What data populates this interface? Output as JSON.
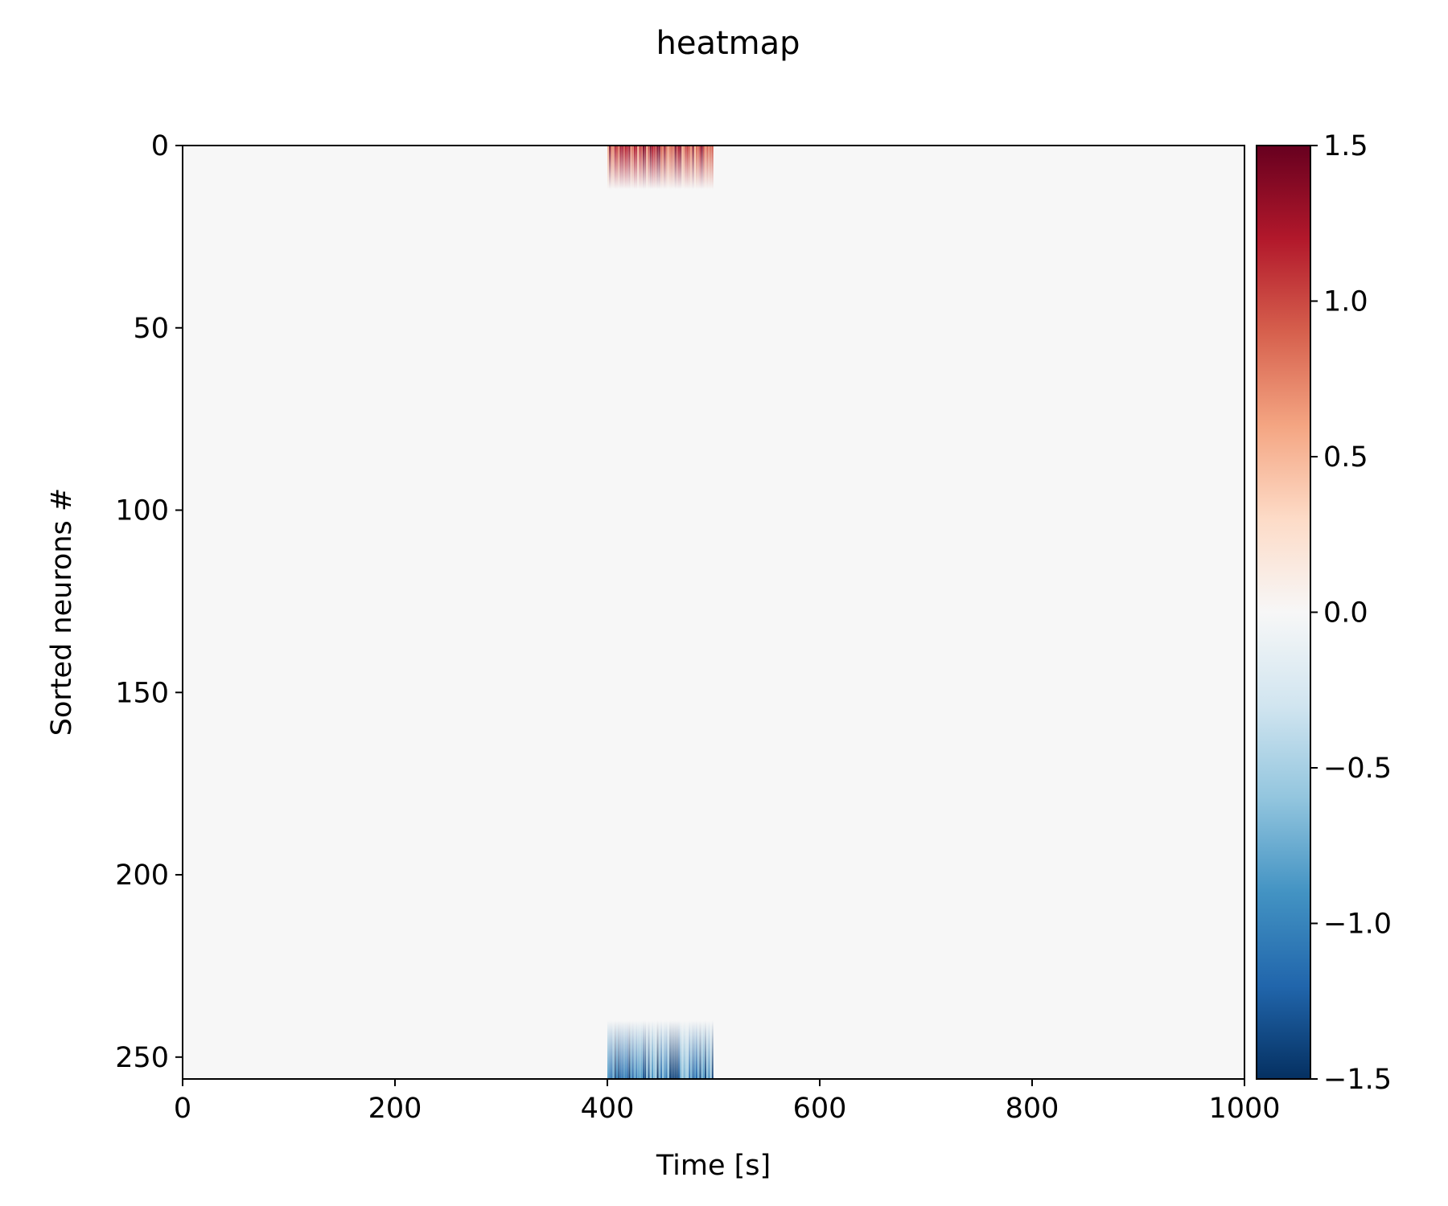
{
  "chart_data": {
    "type": "heatmap",
    "title": "heatmap",
    "xlabel": "Time [s]",
    "ylabel": "Sorted neurons #",
    "xlim": [
      0,
      1000
    ],
    "ylim": [
      256,
      0
    ],
    "x_ticks": [
      0,
      200,
      400,
      600,
      800,
      1000
    ],
    "x_tick_labels": [
      "0",
      "200",
      "400",
      "600",
      "800",
      "1000"
    ],
    "y_ticks": [
      0,
      50,
      100,
      150,
      200,
      250
    ],
    "y_tick_labels": [
      "0",
      "50",
      "100",
      "150",
      "200",
      "250"
    ],
    "background_value": 0.0,
    "colormap": "RdBu_r",
    "colormap_stops": [
      "#053061",
      "#2166ac",
      "#4393c3",
      "#92c5de",
      "#d1e5f0",
      "#f7f7f7",
      "#fddbc7",
      "#f4a582",
      "#d6604d",
      "#b2182b",
      "#67001f"
    ],
    "colorbar": {
      "vmin": -1.5,
      "vmax": 1.5,
      "ticks": [
        1.5,
        1.0,
        0.5,
        0.0,
        -0.5,
        -1.0,
        -1.5
      ],
      "tick_labels": [
        "1.5",
        "1.0",
        "0.5",
        "0.0",
        "−0.5",
        "−1.0",
        "−1.5"
      ]
    },
    "activity_blocks": [
      {
        "label": "top rows, positive response",
        "time_range": [
          400,
          500
        ],
        "neuron_range": [
          0,
          12
        ],
        "peak_value": 1.5
      },
      {
        "label": "bottom rows, negative response",
        "time_range": [
          400,
          500
        ],
        "neuron_range": [
          240,
          256
        ],
        "peak_value": -1.5
      }
    ]
  }
}
